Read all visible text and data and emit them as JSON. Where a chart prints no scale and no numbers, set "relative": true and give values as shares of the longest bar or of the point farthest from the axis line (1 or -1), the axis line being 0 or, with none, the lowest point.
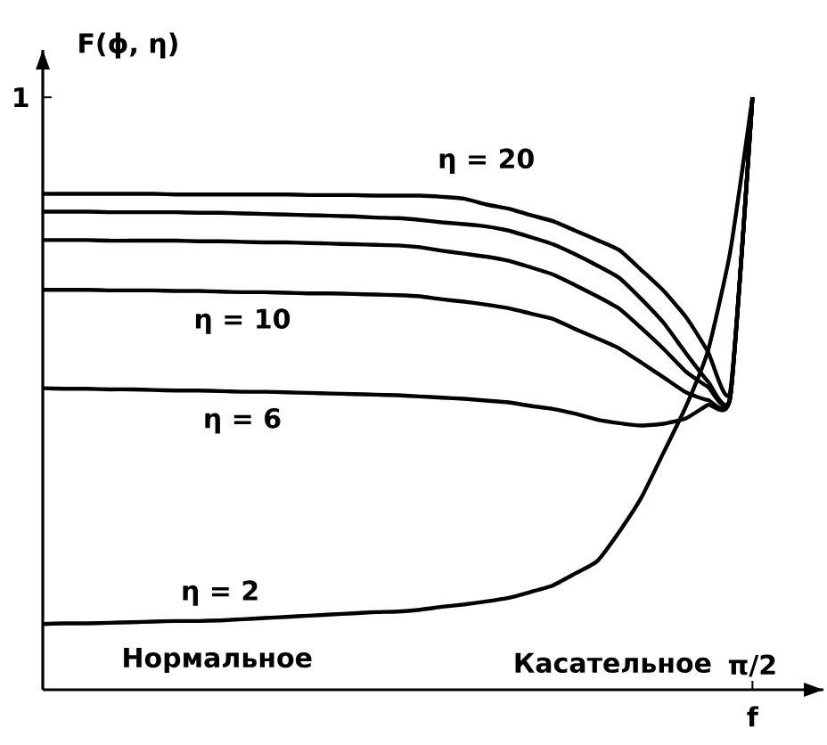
{
  "chart_data": {
    "type": "line",
    "xlabel": "f",
    "ylabel": "F(ϕ, η)",
    "relative": true,
    "marker": "none",
    "line_style": "solid",
    "annotations": [
      "Нормальное",
      "Касательное",
      "π/2",
      "1"
    ],
    "categories": [
      null,
      null,
      null,
      null,
      null,
      null,
      null,
      null,
      null,
      null,
      null,
      null,
      null,
      null,
      null,
      null,
      null,
      null,
      null,
      null,
      null,
      null,
      null,
      null,
      null,
      null,
      null,
      null,
      null,
      null,
      null,
      null,
      null
    ],
    "series": [
      {
        "name": "η = 20",
        "color": "#000000",
        "values": [
          0.837,
          0.837,
          0.837,
          0.837,
          0.837,
          0.837,
          0.836,
          0.836,
          0.836,
          0.836,
          0.836,
          0.836,
          0.835,
          0.835,
          0.835,
          0.834,
          0.834,
          0.834,
          0.832,
          0.829,
          0.819,
          0.812,
          0.801,
          0.791,
          0.775,
          0.759,
          0.742,
          0.708,
          0.673,
          0.629,
          0.57,
          0.504,
          1.0
        ]
      },
      {
        "color": "#000000",
        "values": [
          0.807,
          0.807,
          0.807,
          0.806,
          0.806,
          0.806,
          0.806,
          0.805,
          0.805,
          0.804,
          0.803,
          0.802,
          0.801,
          0.8,
          0.799,
          0.797,
          0.796,
          0.793,
          0.789,
          0.786,
          0.782,
          0.775,
          0.764,
          0.752,
          0.735,
          0.716,
          0.695,
          0.659,
          0.619,
          0.568,
          0.52,
          0.494,
          1.0
        ]
      },
      {
        "color": "#000000",
        "values": [
          0.759,
          0.759,
          0.759,
          0.758,
          0.758,
          0.758,
          0.758,
          0.757,
          0.757,
          0.756,
          0.755,
          0.755,
          0.754,
          0.753,
          0.752,
          0.751,
          0.75,
          0.747,
          0.741,
          0.736,
          0.731,
          0.724,
          0.713,
          0.701,
          0.683,
          0.664,
          0.643,
          0.61,
          0.575,
          0.537,
          0.511,
          0.494,
          1.0
        ]
      },
      {
        "name": "η = 10",
        "color": "#000000",
        "values": [
          0.675,
          0.675,
          0.675,
          0.674,
          0.674,
          0.674,
          0.673,
          0.673,
          0.672,
          0.671,
          0.671,
          0.67,
          0.669,
          0.669,
          0.668,
          0.667,
          0.666,
          0.664,
          0.659,
          0.655,
          0.65,
          0.644,
          0.635,
          0.626,
          0.609,
          0.593,
          0.576,
          0.552,
          0.527,
          0.502,
          0.489,
          0.495,
          1.0
        ]
      },
      {
        "name": "η = 6",
        "color": "#000000",
        "values": [
          0.509,
          0.508,
          0.508,
          0.507,
          0.507,
          0.506,
          0.505,
          0.505,
          0.504,
          0.503,
          0.503,
          0.502,
          0.501,
          0.5,
          0.499,
          0.498,
          0.497,
          0.495,
          0.493,
          0.491,
          0.488,
          0.485,
          0.479,
          0.474,
          0.466,
          0.456,
          0.45,
          0.446,
          0.449,
          0.458,
          0.481,
          0.494,
          1.0
        ]
      },
      {
        "name": "η = 2",
        "color": "#000000",
        "values": [
          0.111,
          0.112,
          0.112,
          0.113,
          0.114,
          0.115,
          0.116,
          0.116,
          0.117,
          0.119,
          0.121,
          0.123,
          0.125,
          0.127,
          0.129,
          0.131,
          0.132,
          0.135,
          0.14,
          0.144,
          0.149,
          0.155,
          0.165,
          0.176,
          0.196,
          0.217,
          0.267,
          0.325,
          0.401,
          0.478,
          0.573,
          0.74,
          1.0
        ]
      }
    ]
  }
}
